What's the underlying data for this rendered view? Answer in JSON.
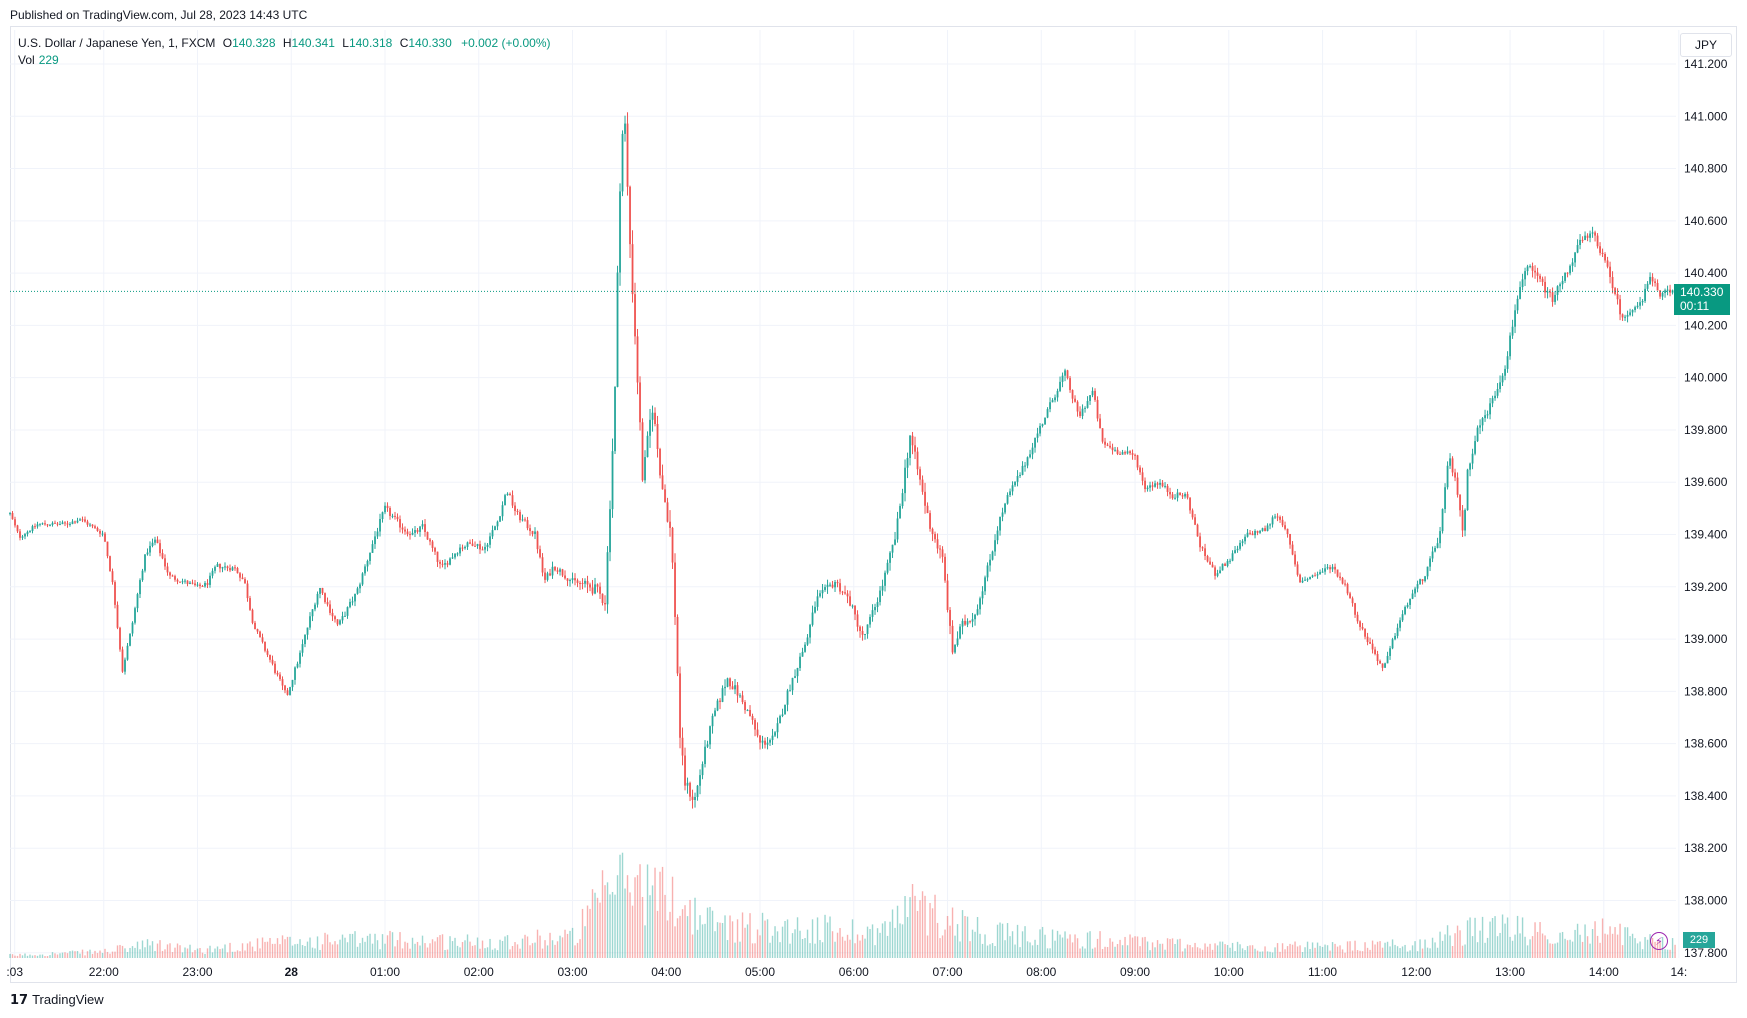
{
  "header": {
    "published": "Published on TradingView.com, Jul 28, 2023 14:43 UTC"
  },
  "legend": {
    "symbol": "U.S. Dollar / Japanese Yen, 1, FXCM",
    "o_label": "O",
    "o": "140.328",
    "h_label": "H",
    "h": "140.341",
    "l_label": "L",
    "l": "140.318",
    "c_label": "C",
    "c": "140.330",
    "change": "+0.002 (+0.00%)",
    "vol_label": "Vol",
    "vol": "229"
  },
  "currency": "JPY",
  "price_tag": {
    "price": "140.330",
    "countdown": "00:11"
  },
  "volume_tag": "229",
  "footer": {
    "brand": "TradingView"
  },
  "colors": {
    "up": "#26a69a",
    "down": "#ef5350",
    "grid": "#f0f3fa",
    "accent": "#089981"
  },
  "icons": {
    "alert": "lightning-icon",
    "logo": "tradingview-logo-icon"
  },
  "chart_data": {
    "type": "candlestick",
    "interval_minutes": 1,
    "y_ticks": [
      137.8,
      138.0,
      138.2,
      138.4,
      138.6,
      138.8,
      139.0,
      139.2,
      139.4,
      139.6,
      139.8,
      140.0,
      140.2,
      140.4,
      140.6,
      140.8,
      141.0,
      141.2
    ],
    "y_tick_labels": [
      "137.800",
      "138.000",
      "138.200",
      "138.400",
      "138.600",
      "138.800",
      "139.000",
      "139.200",
      "139.400",
      "139.600",
      "139.800",
      "140.000",
      "140.200",
      "140.400",
      "140.600",
      "140.800",
      "141.000",
      "141.200"
    ],
    "x_tick_labels": [
      ":03",
      "22:00",
      "23:00",
      "28",
      "01:00",
      "02:00",
      "03:00",
      "04:00",
      "05:00",
      "06:00",
      "07:00",
      "08:00",
      "09:00",
      "10:00",
      "11:00",
      "12:00",
      "13:00",
      "14:00",
      "14:"
    ],
    "x_tick_hours": [
      21.05,
      22,
      23,
      24,
      25,
      26,
      27,
      28,
      29,
      30,
      31,
      32,
      33,
      34,
      35,
      36,
      37,
      38,
      38.8
    ],
    "x_range_hours": [
      21.0,
      38.77
    ],
    "ylim": [
      137.78,
      141.33
    ],
    "last_price": 140.33,
    "price_path": [
      [
        21.0,
        139.48
      ],
      [
        21.1,
        139.39
      ],
      [
        21.3,
        139.44
      ],
      [
        21.6,
        139.44
      ],
      [
        21.75,
        139.46
      ],
      [
        22.0,
        139.4
      ],
      [
        22.1,
        139.2
      ],
      [
        22.2,
        138.88
      ],
      [
        22.3,
        139.05
      ],
      [
        22.4,
        139.25
      ],
      [
        22.45,
        139.33
      ],
      [
        22.55,
        139.38
      ],
      [
        22.7,
        139.24
      ],
      [
        23.0,
        139.2
      ],
      [
        23.1,
        139.21
      ],
      [
        23.2,
        139.28
      ],
      [
        23.4,
        139.27
      ],
      [
        23.5,
        139.22
      ],
      [
        23.6,
        139.05
      ],
      [
        23.8,
        138.9
      ],
      [
        23.95,
        138.78
      ],
      [
        24.1,
        138.95
      ],
      [
        24.2,
        139.08
      ],
      [
        24.3,
        139.2
      ],
      [
        24.4,
        139.12
      ],
      [
        24.5,
        139.05
      ],
      [
        24.7,
        139.18
      ],
      [
        24.9,
        139.4
      ],
      [
        25.0,
        139.5
      ],
      [
        25.2,
        139.42
      ],
      [
        25.3,
        139.4
      ],
      [
        25.4,
        139.43
      ],
      [
        25.5,
        139.35
      ],
      [
        25.6,
        139.27
      ],
      [
        25.8,
        139.35
      ],
      [
        25.95,
        139.37
      ],
      [
        26.05,
        139.34
      ],
      [
        26.2,
        139.45
      ],
      [
        26.3,
        139.57
      ],
      [
        26.4,
        139.48
      ],
      [
        26.6,
        139.4
      ],
      [
        26.7,
        139.22
      ],
      [
        26.8,
        139.28
      ],
      [
        26.9,
        139.25
      ],
      [
        27.0,
        139.22
      ],
      [
        27.2,
        139.2
      ],
      [
        27.35,
        139.15
      ],
      [
        27.45,
        139.9
      ],
      [
        27.5,
        140.7
      ],
      [
        27.55,
        141.05
      ],
      [
        27.6,
        140.6
      ],
      [
        27.7,
        139.95
      ],
      [
        27.75,
        139.6
      ],
      [
        27.85,
        139.9
      ],
      [
        27.95,
        139.6
      ],
      [
        28.05,
        139.4
      ],
      [
        28.1,
        139.05
      ],
      [
        28.15,
        138.6
      ],
      [
        28.2,
        138.45
      ],
      [
        28.3,
        138.38
      ],
      [
        28.4,
        138.55
      ],
      [
        28.5,
        138.7
      ],
      [
        28.65,
        138.85
      ],
      [
        28.75,
        138.8
      ],
      [
        28.9,
        138.7
      ],
      [
        29.0,
        138.6
      ],
      [
        29.15,
        138.62
      ],
      [
        29.3,
        138.8
      ],
      [
        29.5,
        139.0
      ],
      [
        29.6,
        139.15
      ],
      [
        29.8,
        139.22
      ],
      [
        29.95,
        139.15
      ],
      [
        30.1,
        139.0
      ],
      [
        30.3,
        139.2
      ],
      [
        30.45,
        139.4
      ],
      [
        30.6,
        139.78
      ],
      [
        30.8,
        139.45
      ],
      [
        30.95,
        139.3
      ],
      [
        31.05,
        138.95
      ],
      [
        31.15,
        139.05
      ],
      [
        31.3,
        139.1
      ],
      [
        31.45,
        139.3
      ],
      [
        31.55,
        139.45
      ],
      [
        31.65,
        139.55
      ],
      [
        31.8,
        139.65
      ],
      [
        31.95,
        139.78
      ],
      [
        32.1,
        139.9
      ],
      [
        32.25,
        140.02
      ],
      [
        32.4,
        139.85
      ],
      [
        32.55,
        139.95
      ],
      [
        32.65,
        139.75
      ],
      [
        32.8,
        139.72
      ],
      [
        33.0,
        139.7
      ],
      [
        33.1,
        139.58
      ],
      [
        33.25,
        139.6
      ],
      [
        33.4,
        139.55
      ],
      [
        33.55,
        139.55
      ],
      [
        33.7,
        139.35
      ],
      [
        33.85,
        139.25
      ],
      [
        34.0,
        139.3
      ],
      [
        34.2,
        139.4
      ],
      [
        34.4,
        139.42
      ],
      [
        34.5,
        139.48
      ],
      [
        34.6,
        139.43
      ],
      [
        34.75,
        139.22
      ],
      [
        34.95,
        139.25
      ],
      [
        35.1,
        139.28
      ],
      [
        35.25,
        139.2
      ],
      [
        35.4,
        139.05
      ],
      [
        35.55,
        138.95
      ],
      [
        35.65,
        138.88
      ],
      [
        35.8,
        139.05
      ],
      [
        35.95,
        139.17
      ],
      [
        36.1,
        139.25
      ],
      [
        36.25,
        139.4
      ],
      [
        36.35,
        139.7
      ],
      [
        36.45,
        139.55
      ],
      [
        36.5,
        139.4
      ],
      [
        36.55,
        139.65
      ],
      [
        36.65,
        139.8
      ],
      [
        36.8,
        139.9
      ],
      [
        36.95,
        140.05
      ],
      [
        37.0,
        140.15
      ],
      [
        37.1,
        140.35
      ],
      [
        37.2,
        140.42
      ],
      [
        37.3,
        140.38
      ],
      [
        37.45,
        140.3
      ],
      [
        37.6,
        140.4
      ],
      [
        37.75,
        140.52
      ],
      [
        37.9,
        140.55
      ],
      [
        38.0,
        140.45
      ],
      [
        38.1,
        140.35
      ],
      [
        38.2,
        140.22
      ],
      [
        38.3,
        140.27
      ],
      [
        38.4,
        140.28
      ],
      [
        38.5,
        140.4
      ],
      [
        38.6,
        140.3
      ],
      [
        38.65,
        140.33
      ]
    ],
    "volume_profile": [
      [
        21.0,
        5
      ],
      [
        22.0,
        12
      ],
      [
        22.5,
        25
      ],
      [
        23.0,
        15
      ],
      [
        23.6,
        25
      ],
      [
        24.0,
        30
      ],
      [
        25.0,
        35
      ],
      [
        26.0,
        30
      ],
      [
        27.0,
        40
      ],
      [
        27.45,
        140
      ],
      [
        27.6,
        150
      ],
      [
        27.8,
        130
      ],
      [
        28.1,
        110
      ],
      [
        28.4,
        70
      ],
      [
        28.8,
        60
      ],
      [
        29.5,
        55
      ],
      [
        30.3,
        50
      ],
      [
        30.6,
        100
      ],
      [
        31.0,
        75
      ],
      [
        31.5,
        45
      ],
      [
        32.0,
        40
      ],
      [
        33.0,
        30
      ],
      [
        34.0,
        22
      ],
      [
        35.0,
        20
      ],
      [
        36.0,
        25
      ],
      [
        36.5,
        50
      ],
      [
        37.0,
        55
      ],
      [
        37.5,
        45
      ],
      [
        38.0,
        50
      ],
      [
        38.4,
        35
      ],
      [
        38.7,
        30
      ]
    ]
  }
}
